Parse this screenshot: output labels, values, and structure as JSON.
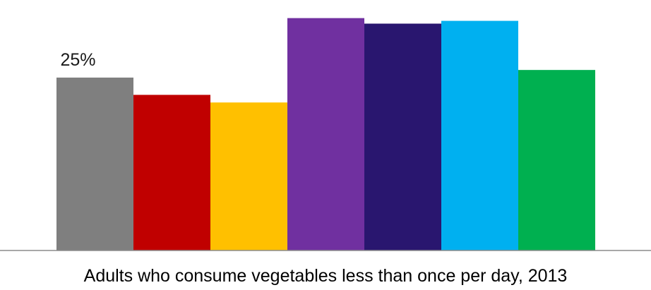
{
  "chart_data": {
    "type": "bar",
    "xlabel": "Adults who consume vegetables less than once per day, 2013",
    "ylim": [
      0,
      35.4
    ],
    "categories": [
      "",
      "",
      "",
      "",
      "",
      "",
      ""
    ],
    "values": [
      25,
      22.5,
      21.4,
      33.6,
      32.8,
      33.2,
      26.1
    ],
    "data_labels": [
      "25%",
      "",
      "",
      "",
      "",
      "",
      ""
    ],
    "colors": [
      "#7F7F7F",
      "#C00000",
      "#FFC000",
      "#7030A0",
      "#29166F",
      "#00B0F0",
      "#00B050"
    ],
    "grid": false,
    "legend": "none"
  }
}
